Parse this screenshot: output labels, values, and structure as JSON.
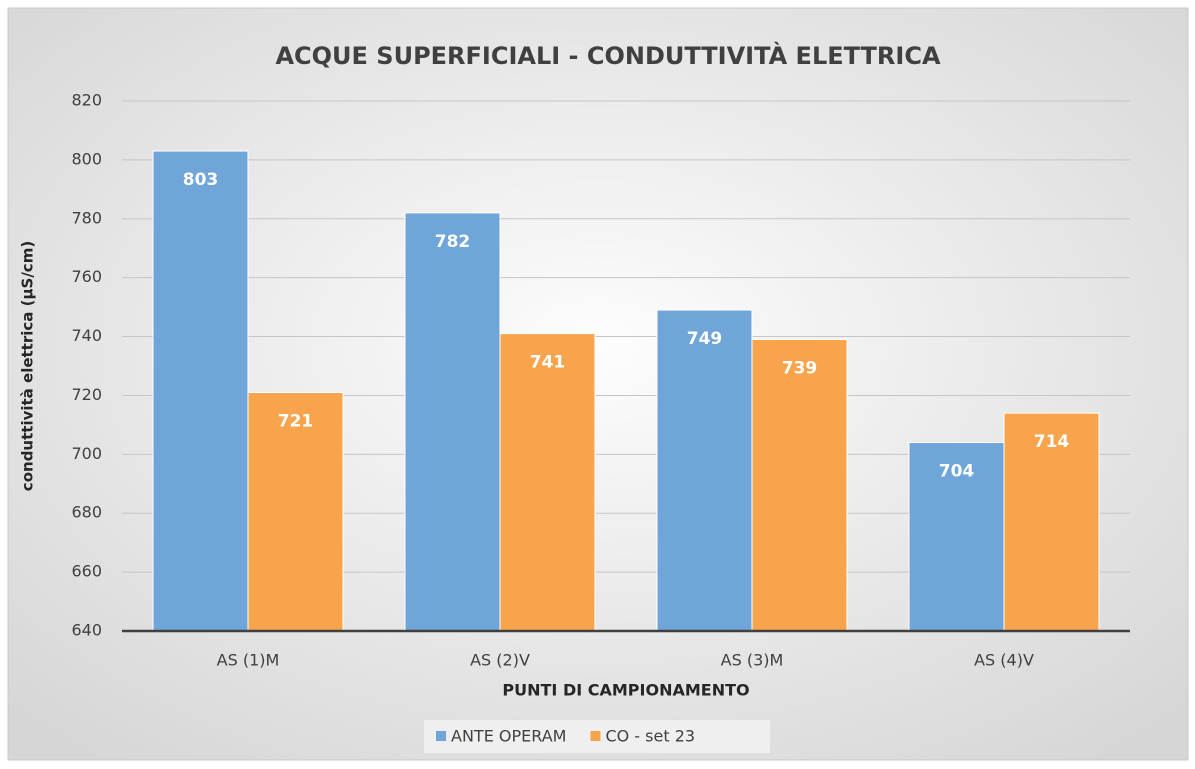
{
  "chart_data": {
    "type": "bar",
    "title": "ACQUE SUPERFICIALI - CONDUTTIVITÀ ELETTRICA",
    "x_label": "PUNTI DI CAMPIONAMENTO",
    "y_label": "conduttività elettrica (µS/cm)",
    "categories": [
      "AS (1)M",
      "AS (2)V",
      "AS (3)M",
      "AS (4)V"
    ],
    "series": [
      {
        "name": "ANTE OPERAM",
        "color": "#6fa5d9",
        "values": [
          803,
          782,
          749,
          704
        ]
      },
      {
        "name": "CO - set 23",
        "color": "#f8a44c",
        "values": [
          721,
          741,
          739,
          714
        ]
      }
    ],
    "ylim": [
      640,
      820
    ],
    "yticks": [
      640,
      660,
      680,
      700,
      720,
      740,
      760,
      780,
      800,
      820
    ],
    "grid": true,
    "legend": "bottom"
  }
}
